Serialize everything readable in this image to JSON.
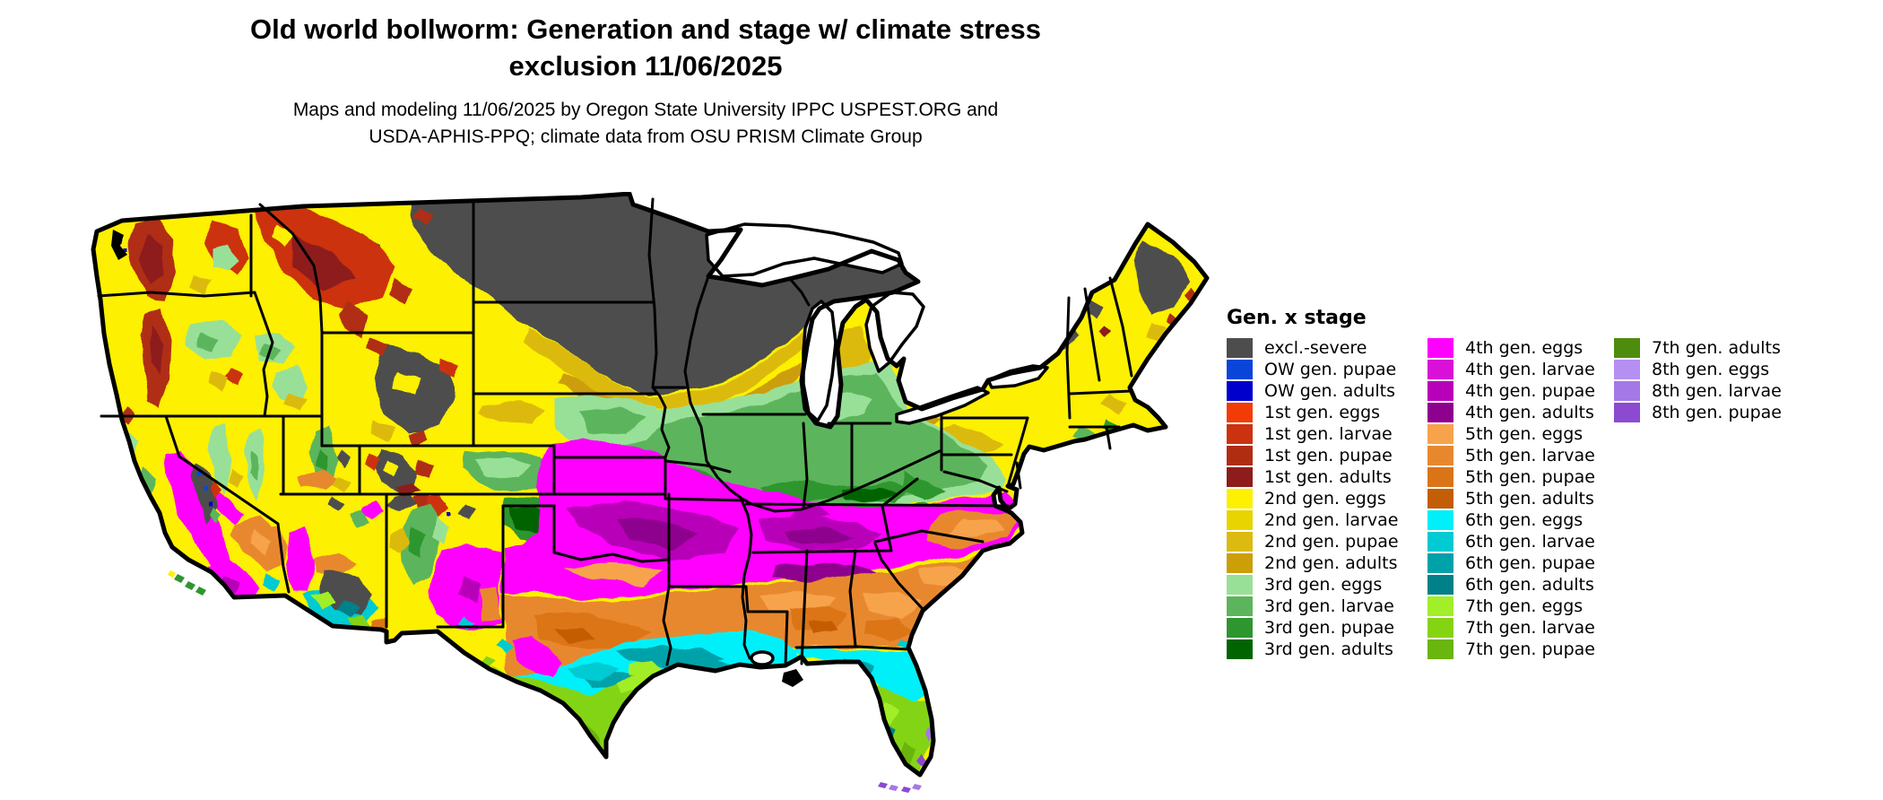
{
  "header": {
    "title_line1": "Old world bollworm: Generation and stage w/ climate stress",
    "title_line2": "exclusion 11/06/2025",
    "subtitle_line1": "Maps and modeling 11/06/2025 by Oregon State University IPPC USPEST.ORG and",
    "subtitle_line2": "USDA-APHIS-PPQ; climate data from OSU PRISM Climate Group"
  },
  "legend": {
    "title": "Gen. x stage",
    "columns": [
      [
        {
          "label": "excl.-severe",
          "color_key": "excl_severe"
        },
        {
          "label": "OW gen. pupae",
          "color_key": "ow_pupae"
        },
        {
          "label": "OW gen. adults",
          "color_key": "ow_adults"
        },
        {
          "label": "1st gen. eggs",
          "color_key": "g1_eggs"
        },
        {
          "label": "1st gen. larvae",
          "color_key": "g1_larvae"
        },
        {
          "label": "1st gen. pupae",
          "color_key": "g1_pupae"
        },
        {
          "label": "1st gen. adults",
          "color_key": "g1_adults"
        },
        {
          "label": "2nd gen. eggs",
          "color_key": "g2_eggs"
        },
        {
          "label": "2nd gen. larvae",
          "color_key": "g2_larvae"
        },
        {
          "label": "2nd gen. pupae",
          "color_key": "g2_pupae"
        },
        {
          "label": "2nd gen. adults",
          "color_key": "g2_adults"
        },
        {
          "label": "3rd gen. eggs",
          "color_key": "g3_eggs"
        },
        {
          "label": "3rd gen. larvae",
          "color_key": "g3_larvae"
        },
        {
          "label": "3rd gen. pupae",
          "color_key": "g3_pupae"
        },
        {
          "label": "3rd gen. adults",
          "color_key": "g3_adults"
        }
      ],
      [
        {
          "label": "4th gen. eggs",
          "color_key": "g4_eggs"
        },
        {
          "label": "4th gen. larvae",
          "color_key": "g4_larvae"
        },
        {
          "label": "4th gen. pupae",
          "color_key": "g4_pupae"
        },
        {
          "label": "4th gen. adults",
          "color_key": "g4_adults"
        },
        {
          "label": "5th gen. eggs",
          "color_key": "g5_eggs"
        },
        {
          "label": "5th gen. larvae",
          "color_key": "g5_larvae"
        },
        {
          "label": "5th gen. pupae",
          "color_key": "g5_pupae"
        },
        {
          "label": "5th gen. adults",
          "color_key": "g5_adults"
        },
        {
          "label": "6th gen. eggs",
          "color_key": "g6_eggs"
        },
        {
          "label": "6th gen. larvae",
          "color_key": "g6_larvae"
        },
        {
          "label": "6th gen. pupae",
          "color_key": "g6_pupae"
        },
        {
          "label": "6th gen. adults",
          "color_key": "g6_adults"
        },
        {
          "label": "7th gen. eggs",
          "color_key": "g7_eggs"
        },
        {
          "label": "7th gen. larvae",
          "color_key": "g7_larvae"
        },
        {
          "label": "7th gen. pupae",
          "color_key": "g7_pupae"
        }
      ],
      [
        {
          "label": "7th gen. adults",
          "color_key": "g7_adults"
        },
        {
          "label": "8th gen. eggs",
          "color_key": "g8_eggs"
        },
        {
          "label": "8th gen. larvae",
          "color_key": "g8_larvae"
        },
        {
          "label": "8th gen. pupae",
          "color_key": "g8_pupae"
        }
      ]
    ]
  },
  "palette": {
    "excl_severe": "#4d4d4d",
    "ow_pupae": "#0a45d9",
    "ow_adults": "#0000cc",
    "g1_eggs": "#f23c07",
    "g1_larvae": "#cc3210",
    "g1_pupae": "#b02d12",
    "g1_adults": "#8e1c1c",
    "g2_eggs": "#fdf000",
    "g2_larvae": "#e8d400",
    "g2_pupae": "#dcba10",
    "g2_adults": "#cc9e08",
    "g3_eggs": "#98e098",
    "g3_larvae": "#5cb55c",
    "g3_pupae": "#2e962e",
    "g3_adults": "#006400",
    "g4_eggs": "#ff00ff",
    "g4_larvae": "#d810d8",
    "g4_pupae": "#b800b8",
    "g4_adults": "#8e008e",
    "g5_eggs": "#f7a34c",
    "g5_larvae": "#e8882e",
    "g5_pupae": "#db7418",
    "g5_adults": "#c35d06",
    "g6_eggs": "#00f0fa",
    "g6_larvae": "#00cad2",
    "g6_pupae": "#00a2aa",
    "g6_adults": "#008088",
    "g7_eggs": "#a2ee28",
    "g7_larvae": "#84d414",
    "g7_pupae": "#6ab50e",
    "g7_adults": "#4e8c0e",
    "g8_eggs": "#b68ff2",
    "g8_larvae": "#a478e6",
    "g8_pupae": "#8c4ad0"
  }
}
